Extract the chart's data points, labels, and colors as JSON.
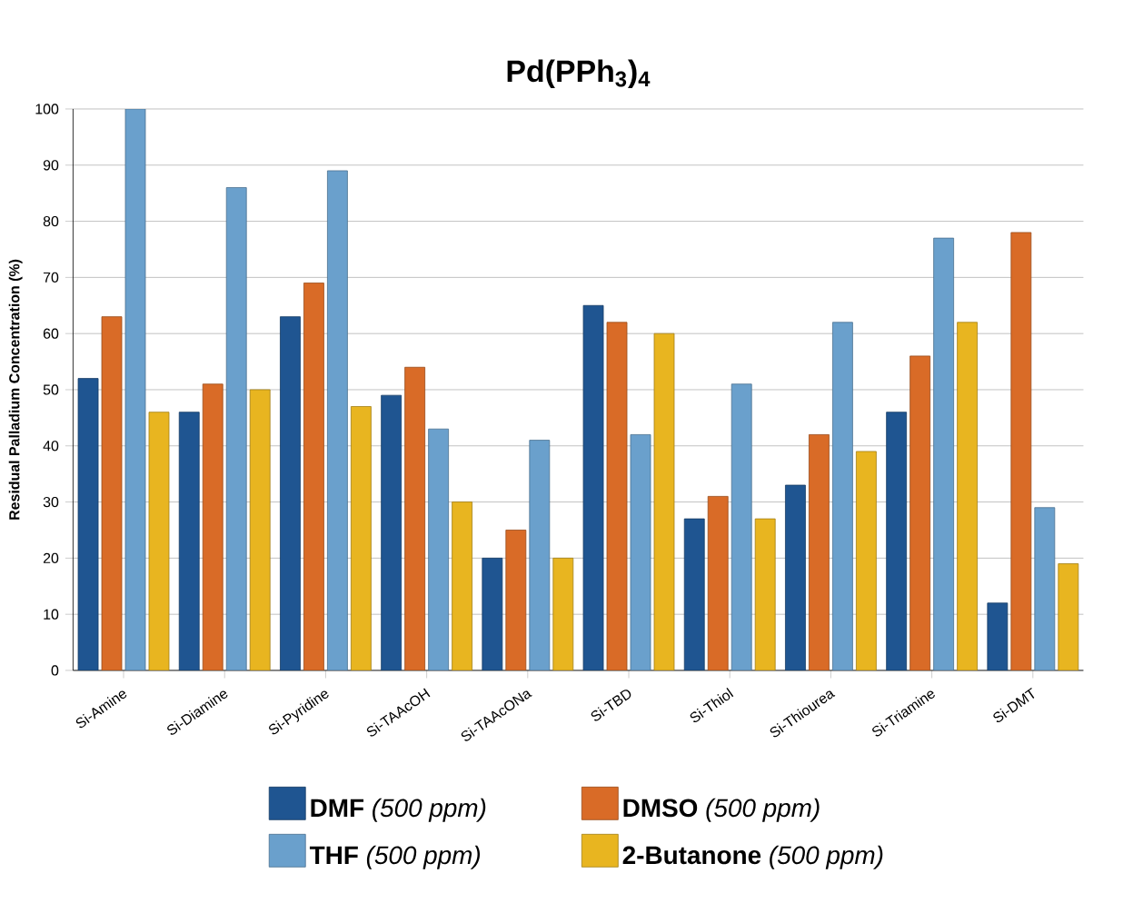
{
  "chart_data": {
    "type": "bar",
    "title": "Pd(PPh$_{3}$)$_{4}$",
    "ylabel": "Residual Palladium Concentration (%)",
    "categories": [
      "Si-Amine",
      "Si-Diamine",
      "Si-Pyridine",
      "Si-TAAcOH",
      "Si-TAAcONa",
      "Si-TBD",
      "Si-Thiol",
      "Si-Thiourea",
      "Si-Triamine",
      "Si-DMT"
    ],
    "series": [
      {
        "name": "**DMF** *(500 ppm)*",
        "color": "#1f5591",
        "values": [
          52,
          46,
          63,
          49,
          20,
          65,
          27,
          33,
          46,
          12
        ]
      },
      {
        "name": "**DMSO** *(500 ppm)*",
        "color": "#d96b27",
        "values": [
          63,
          51,
          69,
          54,
          25,
          62,
          31,
          42,
          56,
          78
        ]
      },
      {
        "name": "**THF** *(500 ppm)*",
        "color": "#6aa0cc",
        "values": [
          100,
          86,
          89,
          43,
          41,
          42,
          51,
          62,
          77,
          29
        ]
      },
      {
        "name": "**2-Butanone** *(500 ppm)*",
        "color": "#e8b520",
        "values": [
          46,
          50,
          47,
          30,
          20,
          60,
          27,
          39,
          62,
          19
        ]
      }
    ],
    "ylim": [
      0,
      100
    ],
    "yticks": [
      0,
      10,
      20,
      30,
      40,
      50,
      60,
      70,
      80,
      90,
      100
    ],
    "grid": "y",
    "legend": "bottom"
  }
}
